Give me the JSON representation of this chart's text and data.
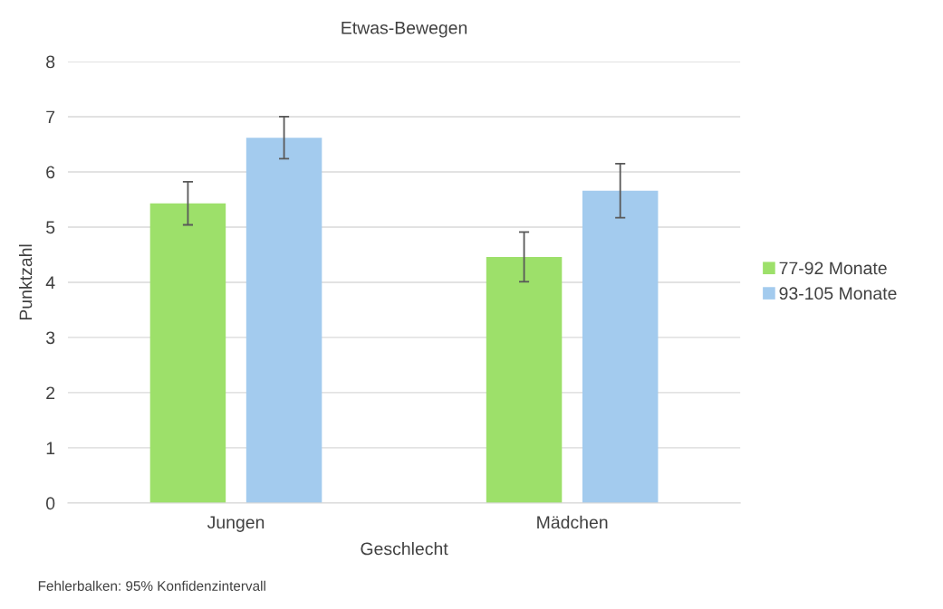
{
  "chart_data": {
    "type": "bar",
    "title": "Etwas-Bewegen",
    "xlabel": "Geschlecht",
    "ylabel": "Punktzahl",
    "categories": [
      "Jungen",
      "Mädchen"
    ],
    "series": [
      {
        "name": "77-92 Monate",
        "color": "#9de06a",
        "values": [
          5.43,
          4.46
        ],
        "errors": [
          0.39,
          0.45
        ]
      },
      {
        "name": "93-105 Monate",
        "color": "#a3cbee",
        "values": [
          6.62,
          5.66
        ],
        "errors": [
          0.38,
          0.49
        ]
      }
    ],
    "ylim": [
      0,
      8
    ],
    "yticks": [
      0,
      1,
      2,
      3,
      4,
      5,
      6,
      7,
      8
    ],
    "grid": "y",
    "legend": "right",
    "annotations": [
      "Fehlerbalken: 95% Konfidenzintervall"
    ]
  }
}
